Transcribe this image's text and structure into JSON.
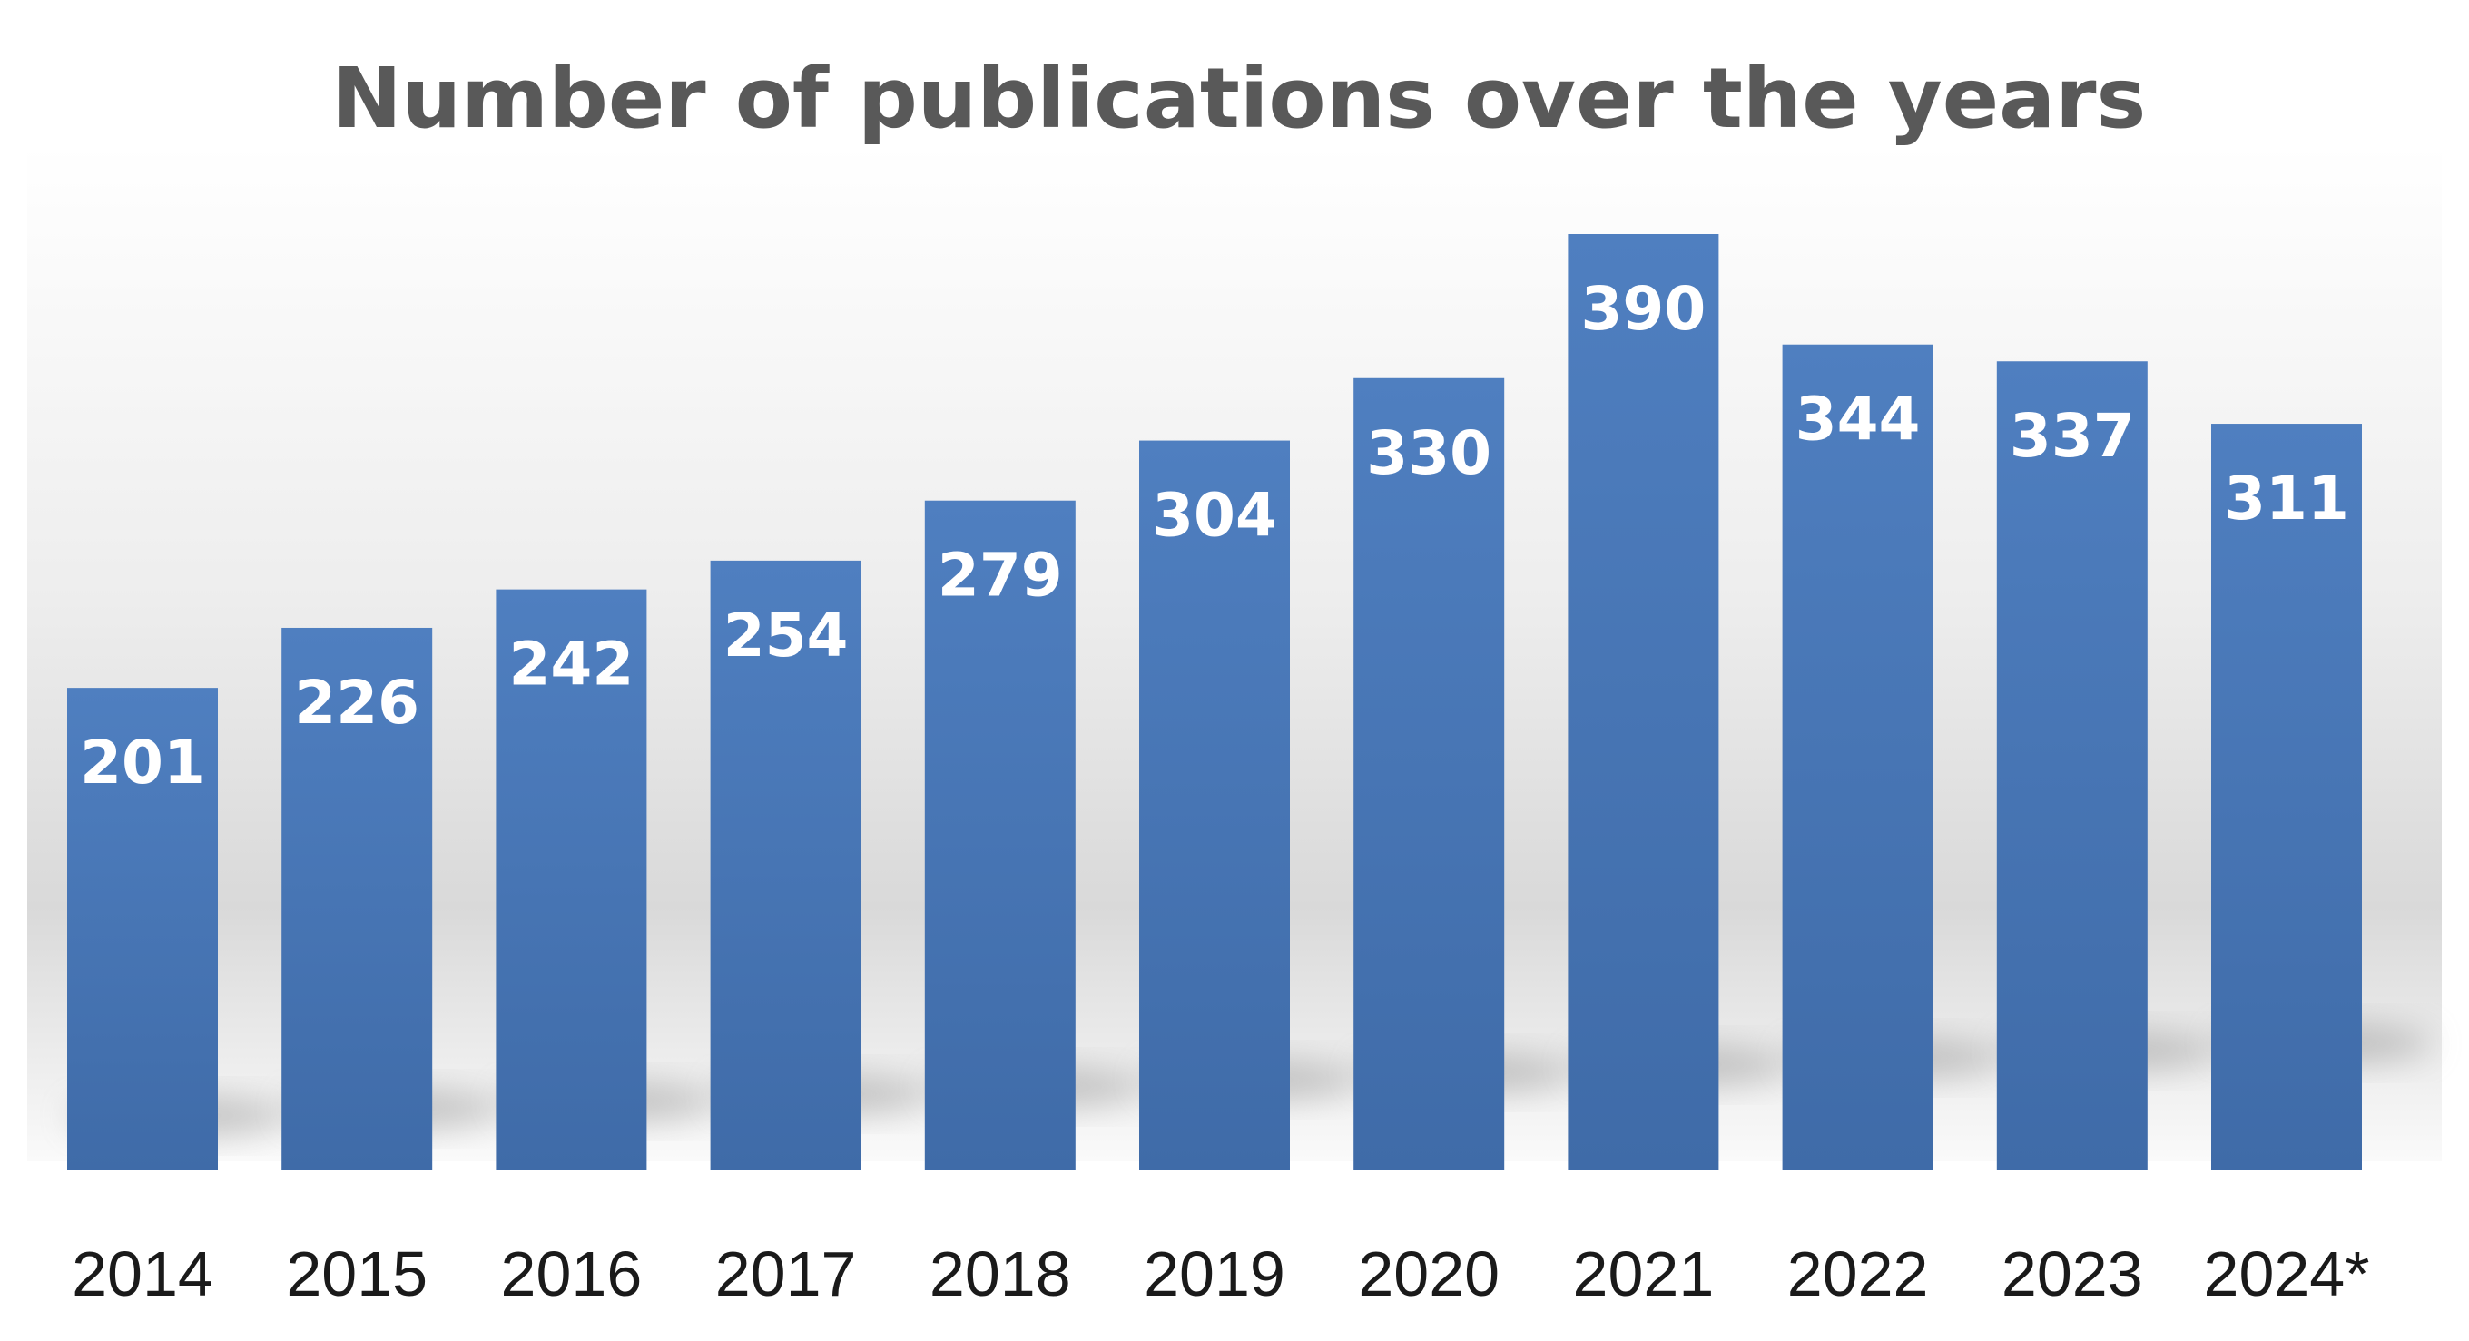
{
  "chart_data": {
    "type": "bar",
    "title": "Number of publications over the years",
    "categories": [
      "2014",
      "2015",
      "2016",
      "2017",
      "2018",
      "2019",
      "2020",
      "2021",
      "2022",
      "2023",
      "2024*"
    ],
    "values": [
      201,
      226,
      242,
      254,
      279,
      304,
      330,
      390,
      344,
      337,
      311
    ],
    "xlabel": "",
    "ylabel": "",
    "ylim": [
      0,
      390
    ],
    "grid": false,
    "legend": "none",
    "bar_color": "#4a7bbf",
    "data_label_color": "#ffffff"
  }
}
